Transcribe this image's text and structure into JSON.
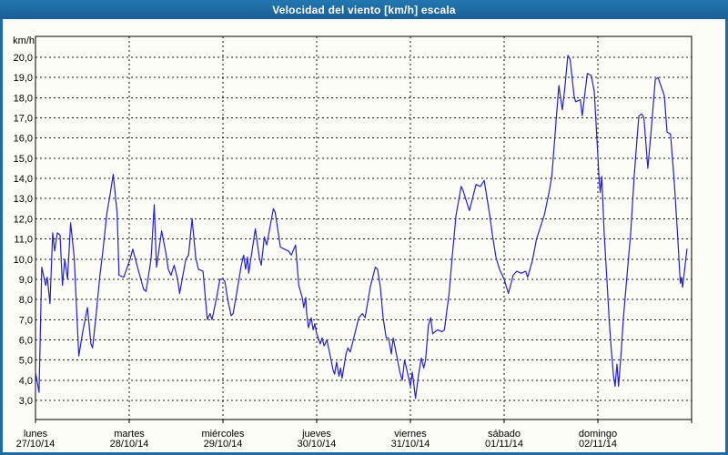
{
  "window": {
    "title": "Velocidad del viento [km/h] escala",
    "colors": {
      "frame_blue": "#1E6CA6",
      "body_background": "#FDFDF7",
      "grid": "#000000",
      "text": "#000000",
      "title_text": "#FFFFFF",
      "series_line": "#2222C8"
    }
  },
  "chart_data": {
    "type": "line",
    "title": "Velocidad del viento [km/h] escala",
    "ylabel": "km/h",
    "grid": "dashed",
    "legend": "none",
    "y_axis": {
      "min": 3.0,
      "max": 20.0,
      "step": 1.0,
      "tick_labels": [
        "20,0",
        "19,0",
        "18,0",
        "17,0",
        "16,0",
        "15,0",
        "14,0",
        "13,0",
        "12,0",
        "11,0",
        "10,0",
        "9,0",
        "8,0",
        "7,0",
        "6,0",
        "5,0",
        "4,0",
        "3,0"
      ],
      "plot_value_top": 21.0,
      "plot_value_bottom": 2.05
    },
    "x_axis": {
      "unit": "hours from start (lunes 27/10/14 00:00)",
      "range_hours": [
        0,
        168
      ],
      "day_ticks": [
        {
          "name": "lunes",
          "date": "27/10/14"
        },
        {
          "name": "martes",
          "date": "28/10/14"
        },
        {
          "name": "miércoles",
          "date": "29/10/14"
        },
        {
          "name": "jueves",
          "date": "30/10/14"
        },
        {
          "name": "viernes",
          "date": "31/10/14"
        },
        {
          "name": "sábado",
          "date": "01/11/14"
        },
        {
          "name": "domingo",
          "date": "02/11/14"
        }
      ]
    },
    "series": [
      {
        "name": "Velocidad del viento",
        "color": "#2222C8",
        "points_hours_kmh": [
          [
            0,
            4.4
          ],
          [
            0.9,
            3.4
          ],
          [
            1.6,
            9.6
          ],
          [
            2.6,
            8.7
          ],
          [
            3,
            9.1
          ],
          [
            3.7,
            7.8
          ],
          [
            4.4,
            11.3
          ],
          [
            4.9,
            10.4
          ],
          [
            5.6,
            11.3
          ],
          [
            6.3,
            11.2
          ],
          [
            6.9,
            8.7
          ],
          [
            7.5,
            10
          ],
          [
            8.2,
            9
          ],
          [
            9,
            11.8
          ],
          [
            9.9,
            10.1
          ],
          [
            11.1,
            5.2
          ],
          [
            12.1,
            6.4
          ],
          [
            13.3,
            7.6
          ],
          [
            14.2,
            5.8
          ],
          [
            14.6,
            5.6
          ],
          [
            15.4,
            7
          ],
          [
            16.5,
            9.2
          ],
          [
            17.2,
            10.3
          ],
          [
            18.3,
            12.3
          ],
          [
            19.1,
            13.2
          ],
          [
            19.9,
            14.2
          ],
          [
            20.9,
            12.3
          ],
          [
            21.4,
            9.2
          ],
          [
            22.6,
            9.1
          ],
          [
            23.5,
            9.6
          ],
          [
            24.2,
            10
          ],
          [
            24.9,
            10.5
          ],
          [
            26.4,
            9.4
          ],
          [
            27.7,
            8.5
          ],
          [
            28.3,
            8.4
          ],
          [
            29.6,
            10
          ],
          [
            30.4,
            12.7
          ],
          [
            31,
            9.6
          ],
          [
            32.3,
            11.4
          ],
          [
            33.4,
            10.3
          ],
          [
            34,
            9.5
          ],
          [
            34.7,
            9.2
          ],
          [
            35.5,
            9.7
          ],
          [
            36.4,
            9
          ],
          [
            36.9,
            8.3
          ],
          [
            38.5,
            10
          ],
          [
            39.2,
            10.2
          ],
          [
            40.1,
            12
          ],
          [
            41,
            10.1
          ],
          [
            41.7,
            9.5
          ],
          [
            42.9,
            9.4
          ],
          [
            44,
            7
          ],
          [
            44.7,
            7.3
          ],
          [
            45.2,
            7
          ],
          [
            46.4,
            8.1
          ],
          [
            47.2,
            9
          ],
          [
            48,
            9
          ],
          [
            48.5,
            8.9
          ],
          [
            49.3,
            7.9
          ],
          [
            50.1,
            7.2
          ],
          [
            50.6,
            7.3
          ],
          [
            51.5,
            8.3
          ],
          [
            52.7,
            9.7
          ],
          [
            53.3,
            10.2
          ],
          [
            53.8,
            9.5
          ],
          [
            54.3,
            10.1
          ],
          [
            54.6,
            9.3
          ],
          [
            56.3,
            11.5
          ],
          [
            57.3,
            10.1
          ],
          [
            57.8,
            9.7
          ],
          [
            58.6,
            11.1
          ],
          [
            59.2,
            10.7
          ],
          [
            60.9,
            12.5
          ],
          [
            61.4,
            12.3
          ],
          [
            62.7,
            10.6
          ],
          [
            63.7,
            10.5
          ],
          [
            64.8,
            10.4
          ],
          [
            65.5,
            10.2
          ],
          [
            66.6,
            10.7
          ],
          [
            67.4,
            8.7
          ],
          [
            68.3,
            8.1
          ],
          [
            68.7,
            7.6
          ],
          [
            69.2,
            8.1
          ],
          [
            69.4,
            7.4
          ],
          [
            69.9,
            6.6
          ],
          [
            70.6,
            7.1
          ],
          [
            71.1,
            6.5
          ],
          [
            71.5,
            6.8
          ],
          [
            72,
            6.3
          ],
          [
            72.9,
            5.8
          ],
          [
            73.4,
            6.1
          ],
          [
            73.9,
            5.7
          ],
          [
            74.6,
            6
          ],
          [
            75.6,
            5.1
          ],
          [
            76.2,
            4.5
          ],
          [
            76.6,
            4.3
          ],
          [
            77.1,
            4.9
          ],
          [
            77.7,
            4.2
          ],
          [
            78.1,
            4.6
          ],
          [
            78.5,
            4.1
          ],
          [
            79.5,
            5.3
          ],
          [
            80,
            5.6
          ],
          [
            80.6,
            5.4
          ],
          [
            82.8,
            7.1
          ],
          [
            83.7,
            7.3
          ],
          [
            84.4,
            7.1
          ],
          [
            85.7,
            8.6
          ],
          [
            87,
            9.6
          ],
          [
            87.6,
            9.5
          ],
          [
            88.3,
            8.6
          ],
          [
            89,
            7.1
          ],
          [
            89.8,
            6.1
          ],
          [
            90.4,
            6.1
          ],
          [
            91.1,
            5.3
          ],
          [
            91.6,
            6.1
          ],
          [
            92.5,
            5.2
          ],
          [
            93.3,
            4.4
          ],
          [
            93.9,
            4
          ],
          [
            94.5,
            5
          ],
          [
            95.2,
            4.4
          ],
          [
            96,
            3.7
          ],
          [
            96.5,
            4.4
          ],
          [
            97.3,
            3.1
          ],
          [
            98.1,
            4.3
          ],
          [
            98.8,
            5.1
          ],
          [
            99.4,
            4.6
          ],
          [
            99.9,
            5
          ],
          [
            100.6,
            6.7
          ],
          [
            101.2,
            7.1
          ],
          [
            101.7,
            6.3
          ],
          [
            102.3,
            6.4
          ],
          [
            103,
            6.5
          ],
          [
            104.1,
            6.4
          ],
          [
            104.7,
            6.5
          ],
          [
            105.9,
            8.3
          ],
          [
            106.7,
            10.1
          ],
          [
            107.7,
            12.2
          ],
          [
            109,
            13.6
          ],
          [
            109.5,
            13.4
          ],
          [
            111.1,
            12.4
          ],
          [
            112.8,
            13.7
          ],
          [
            113.9,
            13.6
          ],
          [
            114.9,
            13.9
          ],
          [
            116.3,
            12.2
          ],
          [
            117,
            11.2
          ],
          [
            117.9,
            10.1
          ],
          [
            118.8,
            9.5
          ],
          [
            120,
            9
          ],
          [
            121.1,
            8.3
          ],
          [
            122.3,
            9.2
          ],
          [
            123.2,
            9.4
          ],
          [
            124.4,
            9.3
          ],
          [
            125.5,
            9.4
          ],
          [
            126,
            9.1
          ],
          [
            127.2,
            9.9
          ],
          [
            128.3,
            11
          ],
          [
            130.3,
            12.2
          ],
          [
            131.4,
            13.2
          ],
          [
            132.2,
            14.1
          ],
          [
            133,
            16.1
          ],
          [
            134,
            18.6
          ],
          [
            134.9,
            17.4
          ],
          [
            135.5,
            18.4
          ],
          [
            136.3,
            20.1
          ],
          [
            136.9,
            19.9
          ],
          [
            137.9,
            18.1
          ],
          [
            138.3,
            17.8
          ],
          [
            139.5,
            17.9
          ],
          [
            140,
            17.1
          ],
          [
            141.3,
            19.2
          ],
          [
            142.3,
            19.1
          ],
          [
            143.1,
            18.3
          ],
          [
            144,
            15.1
          ],
          [
            144.3,
            14
          ],
          [
            144.6,
            13.3
          ],
          [
            145,
            14.1
          ],
          [
            145.6,
            11.3
          ],
          [
            146.4,
            8.7
          ],
          [
            146.9,
            7
          ],
          [
            147.4,
            5.6
          ],
          [
            148,
            4.2
          ],
          [
            148.4,
            3.7
          ],
          [
            148.9,
            4.8
          ],
          [
            149.3,
            3.7
          ],
          [
            150,
            5.5
          ],
          [
            150.5,
            7
          ],
          [
            151.6,
            9.5
          ],
          [
            152.4,
            11.3
          ],
          [
            153.3,
            14.1
          ],
          [
            154,
            15.9
          ],
          [
            154.5,
            17.1
          ],
          [
            155.2,
            17.2
          ],
          [
            155.8,
            17
          ],
          [
            156.8,
            14.5
          ],
          [
            157.7,
            16.5
          ],
          [
            158.7,
            18.9
          ],
          [
            159.4,
            19
          ],
          [
            160.3,
            18.5
          ],
          [
            161,
            18.1
          ],
          [
            161.7,
            16.3
          ],
          [
            162.6,
            16.2
          ],
          [
            163.5,
            14
          ],
          [
            164.4,
            11.2
          ],
          [
            165.1,
            8.8
          ],
          [
            165.4,
            9.1
          ],
          [
            165.7,
            8.6
          ],
          [
            166.8,
            10.5
          ]
        ]
      }
    ]
  }
}
